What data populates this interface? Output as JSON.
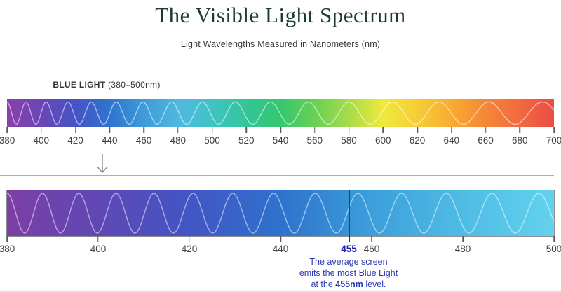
{
  "title": "The Visible Light Spectrum",
  "subtitle": "Light Wavelengths Measured in Nanometers (nm)",
  "callout": {
    "label_bold": "BLUE LIGHT",
    "label_range": "(380–500nm)"
  },
  "full_spectrum": {
    "min_nm": 380,
    "max_nm": 700,
    "tick_step_nm": 20,
    "ticks": [
      380,
      400,
      420,
      440,
      460,
      480,
      500,
      520,
      540,
      560,
      580,
      600,
      620,
      640,
      660,
      680,
      700
    ],
    "gradient": [
      {
        "nm": 380,
        "color": "#8B3FA9"
      },
      {
        "nm": 400,
        "color": "#6A46B8"
      },
      {
        "nm": 420,
        "color": "#4653C6"
      },
      {
        "nm": 440,
        "color": "#2F74CE"
      },
      {
        "nm": 460,
        "color": "#3E9BD9"
      },
      {
        "nm": 480,
        "color": "#4FB8DF"
      },
      {
        "nm": 500,
        "color": "#3FC4C4"
      },
      {
        "nm": 520,
        "color": "#34C597"
      },
      {
        "nm": 540,
        "color": "#33C86E"
      },
      {
        "nm": 560,
        "color": "#69D055"
      },
      {
        "nm": 580,
        "color": "#A8DC4B"
      },
      {
        "nm": 600,
        "color": "#EFE93C"
      },
      {
        "nm": 620,
        "color": "#F6CD37"
      },
      {
        "nm": 640,
        "color": "#F8AB31"
      },
      {
        "nm": 660,
        "color": "#F68638"
      },
      {
        "nm": 680,
        "color": "#F26940"
      },
      {
        "nm": 700,
        "color": "#EC4C44"
      }
    ]
  },
  "blue_spectrum": {
    "min_nm": 380,
    "max_nm": 500,
    "highlight_nm": 455,
    "ticks": [
      {
        "nm": 380
      },
      {
        "nm": 400
      },
      {
        "nm": 420
      },
      {
        "nm": 440
      },
      {
        "nm": 455,
        "highlight": true
      },
      {
        "nm": 460
      },
      {
        "nm": 480
      },
      {
        "nm": 500
      }
    ],
    "gradient": [
      {
        "nm": 380,
        "color": "#7C3FA5"
      },
      {
        "nm": 400,
        "color": "#5F48B5"
      },
      {
        "nm": 420,
        "color": "#4355C5"
      },
      {
        "nm": 440,
        "color": "#2E72CC"
      },
      {
        "nm": 460,
        "color": "#3C9FDB"
      },
      {
        "nm": 480,
        "color": "#4FBCE5"
      },
      {
        "nm": 500,
        "color": "#63D2EE"
      }
    ],
    "annotation": {
      "line1": "The average screen",
      "line2": "emits the most Blue Light",
      "line3_prefix": "at the ",
      "line3_bold": "455nm",
      "line3_suffix": " level."
    }
  },
  "colors": {
    "title_text": "#1d3a33",
    "body_text": "#3a3a3a",
    "tick_text": "#414141",
    "highlight_blue": "#2038a8",
    "annotation_blue": "#2b3bb2",
    "box_border": "#9a9a9a",
    "wave_stroke": "rgba(255,255,255,0.55)"
  }
}
